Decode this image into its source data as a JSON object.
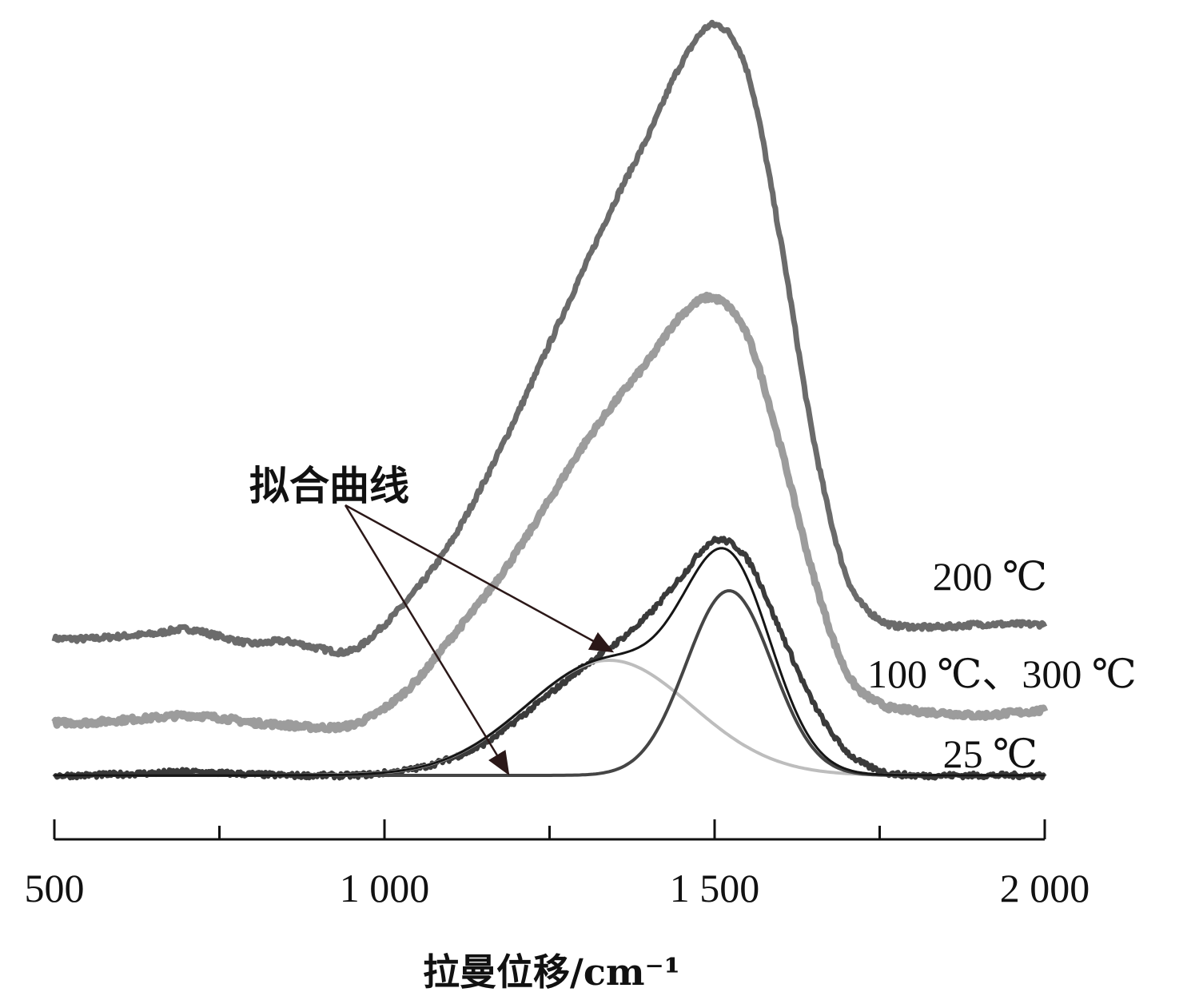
{
  "chart_data": {
    "type": "line",
    "title": "",
    "xlabel": "拉曼位移/cm⁻¹",
    "ylabel": "",
    "xlim": [
      500,
      2000
    ],
    "ylim_units": "arbitrary intensity (offset traces)",
    "ylim": [
      0,
      320
    ],
    "grid": false,
    "x_ticks": [
      500,
      750,
      1000,
      1250,
      1500,
      1750,
      2000
    ],
    "x_tick_labels": [
      {
        "value": 500,
        "label": "500"
      },
      {
        "value": 1000,
        "label": "1 000"
      },
      {
        "value": 1500,
        "label": "1 500"
      },
      {
        "value": 2000,
        "label": "2 000"
      }
    ],
    "x": [
      500,
      550,
      600,
      650,
      700,
      750,
      800,
      850,
      900,
      950,
      1000,
      1050,
      1100,
      1150,
      1200,
      1250,
      1300,
      1350,
      1400,
      1450,
      1500,
      1550,
      1600,
      1650,
      1700,
      1750,
      1800,
      1850,
      1900,
      1950,
      2000
    ],
    "series": [
      {
        "name": "200 ℃",
        "color": "#6b6b6b",
        "values": [
          57,
          57,
          58,
          59,
          61,
          58,
          55,
          56,
          53,
          52,
          63,
          78,
          97,
          122,
          150,
          180,
          210,
          240,
          267,
          297,
          313,
          293,
          223,
          140,
          83,
          65,
          62,
          62,
          63,
          63,
          63
        ]
      },
      {
        "name": "100 ℃、300 ℃",
        "color": "#9c9c9c",
        "values": [
          22,
          22,
          23,
          24,
          25,
          24,
          22,
          21,
          20,
          21,
          28,
          40,
          57,
          74,
          93,
          115,
          137,
          156,
          173,
          192,
          199,
          183,
          137,
          83,
          43,
          30,
          27,
          26,
          25,
          26,
          27
        ]
      },
      {
        "name": "25 ℃",
        "color": "#3a3a3a",
        "values": [
          0,
          0,
          0.5,
          1,
          1.5,
          1,
          0.5,
          0,
          0,
          0,
          1,
          3,
          7,
          13,
          23,
          34,
          45,
          55,
          67,
          83,
          98,
          90,
          60,
          30,
          10,
          2,
          0,
          0,
          0,
          0,
          0
        ]
      }
    ],
    "fit_components": [
      {
        "name": "fit-peak-1",
        "center": 1340,
        "amplitude": 48,
        "sigma": 125,
        "color": "#bdbdbd"
      },
      {
        "name": "fit-peak-2",
        "center": 1522,
        "amplitude": 77,
        "sigma": 65,
        "color": "#454545"
      }
    ],
    "fit_sum_color": "#151515",
    "annotation": {
      "text": "拟合曲线",
      "arrow_color": "#2b1818",
      "points_to": [
        "fit baseline near 1200",
        "fit-peak-1 near 1340"
      ]
    }
  }
}
